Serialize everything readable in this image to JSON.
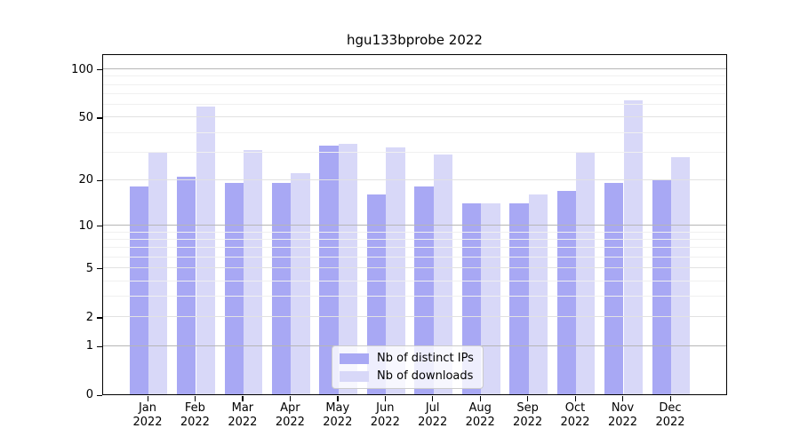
{
  "title": "hgu133bprobe 2022",
  "chart_data": {
    "type": "bar",
    "title": "hgu133bprobe 2022",
    "categories": [
      "Jan 2022",
      "Feb 2022",
      "Mar 2022",
      "Apr 2022",
      "May 2022",
      "Jun 2022",
      "Jul 2022",
      "Aug 2022",
      "Sep 2022",
      "Oct 2022",
      "Nov 2022",
      "Dec 2022"
    ],
    "x_tick_line1": [
      "Jan",
      "Feb",
      "Mar",
      "Apr",
      "May",
      "Jun",
      "Jul",
      "Aug",
      "Sep",
      "Oct",
      "Nov",
      "Dec"
    ],
    "x_tick_line2": "2022",
    "series": [
      {
        "name": "Nb of distinct IPs",
        "color": "#a8a8f4",
        "values": [
          18,
          21,
          19,
          19,
          33,
          16,
          18,
          14,
          14,
          17,
          19,
          20
        ]
      },
      {
        "name": "Nb of downloads",
        "color": "#d8d8f8",
        "values": [
          30,
          58,
          31,
          22,
          34,
          32,
          29,
          14,
          16,
          30,
          64,
          28
        ]
      }
    ],
    "xlabel": "",
    "ylabel": "",
    "yscale": "log1p",
    "yticks": [
      0,
      1,
      2,
      5,
      10,
      20,
      50,
      100
    ],
    "ylim": [
      0,
      125
    ],
    "grid": "on",
    "grid_major": [
      1,
      10,
      100
    ],
    "grid_mid": [
      2,
      5,
      20,
      50
    ],
    "grid_minor": [
      3,
      4,
      6,
      7,
      8,
      9,
      30,
      40,
      60,
      70,
      80,
      90
    ],
    "legend_position": "lower center"
  },
  "colors": {
    "bar_ips": "#a8a8f4",
    "bar_downloads": "#d8d8f8",
    "grid_major": "#b6b6b6",
    "grid_mid": "#e2e2e2",
    "grid_minor": "#f0f0f0",
    "axis": "#000000",
    "legend_border": "#cccccc",
    "legend_bg": "rgba(255,255,255,0.8)"
  }
}
